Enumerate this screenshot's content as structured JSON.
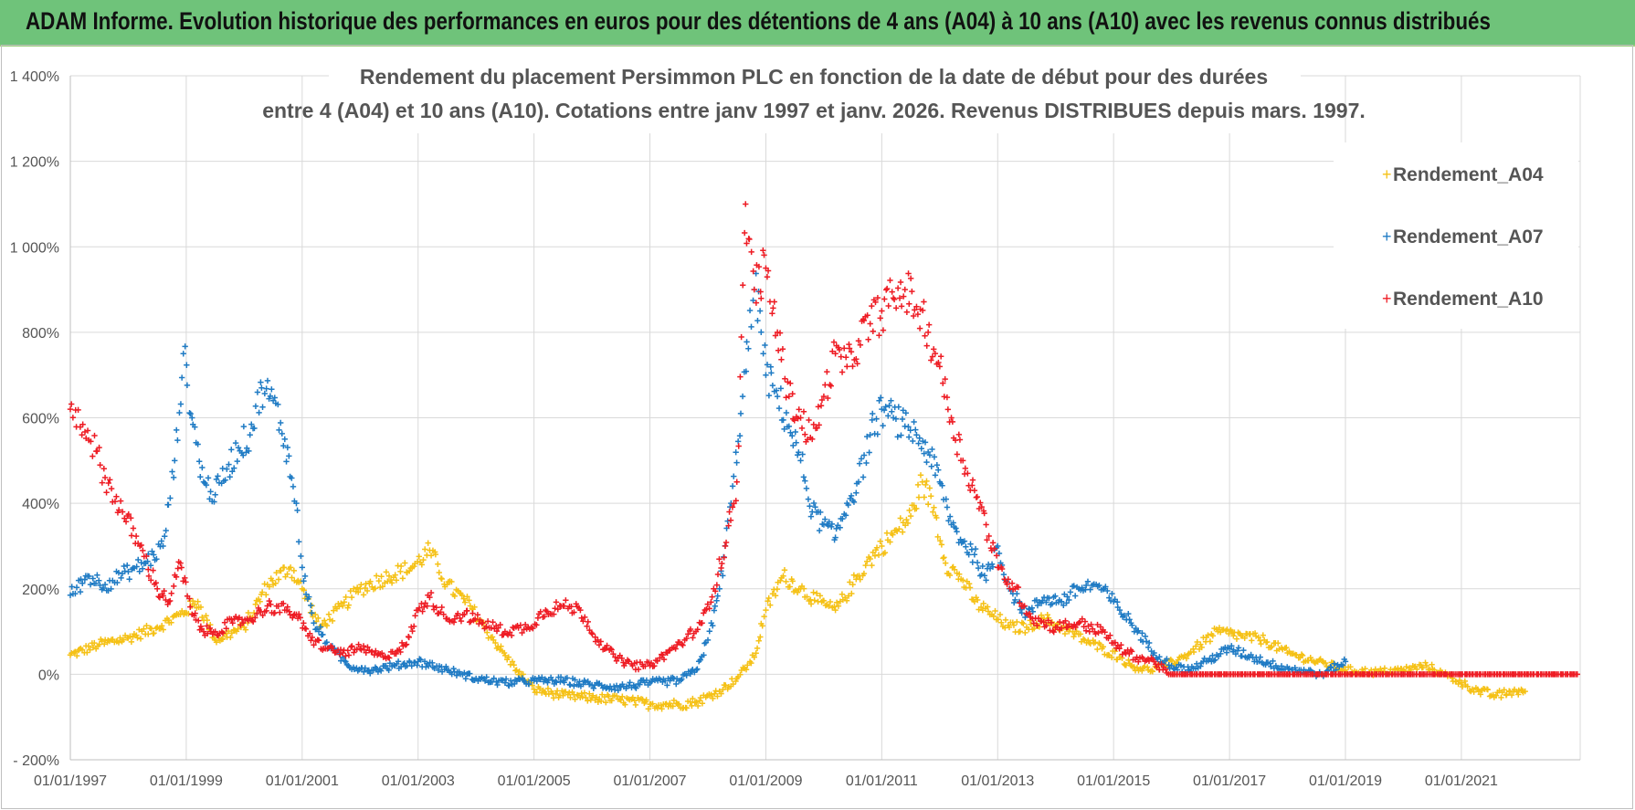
{
  "banner": {
    "title": "ADAM Informe. Evolution historique des performances en euros pour des détentions de 4 ans (A04) à 10 ans (A10) avec les revenus connus distribués"
  },
  "colors": {
    "banner_bg": "#6fc37a",
    "grid": "#d9d9d9",
    "A04": "#f5c116",
    "A07": "#1f7bc4",
    "A10": "#ee1c24"
  },
  "chart_data": {
    "type": "scatter",
    "title": [
      "Rendement du placement Persimmon PLC en fonction de la date de début pour des durées",
      "entre 4 (A04) et 10 ans (A10).  Cotations entre janv 1997 et janv. 2026. Revenus DISTRIBUES depuis mars. 1997."
    ],
    "marker": "+",
    "xlabel": "",
    "ylabel": "",
    "xlim": [
      1997.0,
      2023.05
    ],
    "ylim": [
      -200,
      1400
    ],
    "y_ticks": [
      -200,
      0,
      200,
      400,
      600,
      800,
      1000,
      1200,
      1400
    ],
    "y_tick_labels": [
      "- 200%",
      "0%",
      "200%",
      "400%",
      "600%",
      "800%",
      "1 000%",
      "1 200%",
      "1 400%"
    ],
    "x_ticks": [
      1997,
      1999,
      2001,
      2003,
      2005,
      2007,
      2009,
      2011,
      2013,
      2015,
      2017,
      2019,
      2021
    ],
    "x_tick_labels": [
      "01/01/1997",
      "01/01/1999",
      "01/01/2001",
      "01/01/2003",
      "01/01/2005",
      "01/01/2007",
      "01/01/2009",
      "01/01/2011",
      "01/01/2013",
      "01/01/2015",
      "01/01/2017",
      "01/01/2019",
      "01/01/2021"
    ],
    "legend_position": "top-right",
    "series": [
      {
        "name": "Rendement_A04",
        "color": "#f5c116",
        "x": [
          1997.0,
          1997.5,
          1998.0,
          1998.5,
          1998.9,
          1999.2,
          1999.5,
          2000.0,
          2000.4,
          2000.8,
          2001.0,
          2001.3,
          2001.7,
          2002.0,
          2002.5,
          2002.9,
          2003.2,
          2003.5,
          2003.9,
          2004.3,
          2004.7,
          2005.0,
          2005.5,
          2006.0,
          2006.5,
          2007.0,
          2007.5,
          2007.8,
          2008.2,
          2008.5,
          2008.8,
          2009.0,
          2009.3,
          2009.6,
          2009.9,
          2010.2,
          2010.5,
          2010.8,
          2011.0,
          2011.3,
          2011.5,
          2011.7,
          2011.9,
          2012.1,
          2012.4,
          2012.6,
          2012.9,
          2013.2,
          2013.5,
          2013.8,
          2014.1,
          2014.5,
          2014.8,
          2015.1,
          2015.3,
          2015.6,
          2015.9,
          2016.2,
          2016.5,
          2016.8,
          2017.2,
          2017.6,
          2018.0,
          2018.5,
          2019.0,
          2019.5,
          2020.0,
          2020.4,
          2020.7,
          2021.0,
          2021.3,
          2021.6,
          2021.9,
          2022.1
        ],
        "y": [
          45,
          70,
          85,
          110,
          140,
          170,
          80,
          110,
          210,
          250,
          200,
          110,
          160,
          200,
          230,
          250,
          290,
          210,
          160,
          80,
          10,
          -35,
          -50,
          -55,
          -60,
          -70,
          -70,
          -65,
          -40,
          -10,
          40,
          150,
          230,
          200,
          170,
          150,
          210,
          270,
          300,
          340,
          370,
          450,
          390,
          260,
          220,
          170,
          140,
          110,
          110,
          130,
          110,
          80,
          60,
          40,
          20,
          10,
          20,
          40,
          70,
          100,
          90,
          80,
          50,
          30,
          10,
          5,
          10,
          20,
          0,
          -20,
          -40,
          -50,
          -40,
          -40
        ]
      },
      {
        "name": "Rendement_A07",
        "color": "#1f7bc4",
        "x": [
          1997.0,
          1997.3,
          1997.6,
          1998.0,
          1998.3,
          1998.6,
          1998.8,
          1998.95,
          1999.1,
          1999.3,
          1999.5,
          1999.7,
          1999.9,
          2000.1,
          2000.3,
          2000.5,
          2000.7,
          2000.9,
          2001.0,
          2001.2,
          2001.5,
          2001.8,
          2002.2,
          2002.6,
          2003.0,
          2003.5,
          2004.0,
          2004.5,
          2005.0,
          2005.5,
          2006.0,
          2006.5,
          2007.0,
          2007.5,
          2007.8,
          2008.0,
          2008.2,
          2008.4,
          2008.6,
          2008.8,
          2008.9,
          2009.0,
          2009.2,
          2009.4,
          2009.6,
          2009.8,
          2010.0,
          2010.2,
          2010.4,
          2010.6,
          2010.8,
          2011.0,
          2011.2,
          2011.4,
          2011.6,
          2011.8,
          2012.0,
          2012.2,
          2012.4,
          2012.6,
          2012.8,
          2013.0,
          2013.2,
          2013.5,
          2013.8,
          2014.1,
          2014.4,
          2014.7,
          2015.0,
          2015.3,
          2015.7,
          2016.0,
          2016.3,
          2016.6,
          2017.0,
          2017.4,
          2017.8,
          2018.2,
          2018.6,
          2019.0
        ],
        "y": [
          185,
          230,
          210,
          240,
          260,
          300,
          500,
          750,
          600,
          450,
          420,
          480,
          530,
          560,
          670,
          640,
          550,
          400,
          250,
          120,
          60,
          20,
          10,
          20,
          30,
          10,
          -10,
          -20,
          -15,
          -15,
          -25,
          -30,
          -20,
          -15,
          10,
          80,
          200,
          400,
          650,
          900,
          850,
          700,
          650,
          580,
          500,
          380,
          350,
          320,
          400,
          450,
          560,
          620,
          600,
          580,
          560,
          520,
          450,
          350,
          310,
          280,
          220,
          300,
          200,
          140,
          180,
          170,
          200,
          210,
          170,
          120,
          50,
          20,
          10,
          30,
          60,
          40,
          20,
          10,
          0,
          30
        ]
      },
      {
        "name": "Rendement_A10",
        "color": "#ee1c24",
        "x": [
          1997.0,
          1997.3,
          1997.6,
          1997.9,
          1998.2,
          1998.5,
          1998.7,
          1998.9,
          1999.1,
          1999.3,
          1999.5,
          1999.8,
          2000.1,
          2000.4,
          2000.7,
          2000.9,
          2001.1,
          2001.4,
          2001.7,
          2002.0,
          2002.4,
          2002.8,
          2003.0,
          2003.2,
          2003.5,
          2003.8,
          2004.1,
          2004.5,
          2004.9,
          2005.2,
          2005.5,
          2005.8,
          2006.1,
          2006.4,
          2006.7,
          2007.0,
          2007.3,
          2007.6,
          2007.9,
          2008.1,
          2008.3,
          2008.5,
          2008.65,
          2008.8,
          2009.0,
          2009.2,
          2009.4,
          2009.6,
          2009.8,
          2010.0,
          2010.2,
          2010.4,
          2010.6,
          2010.8,
          2011.0,
          2011.2,
          2011.4,
          2011.6,
          2011.8,
          2012.0,
          2012.2,
          2012.4,
          2012.6,
          2012.8,
          2013.0,
          2013.3,
          2013.6,
          2014.0,
          2014.4,
          2014.8,
          2015.1,
          2015.4,
          2015.7,
          2015.95,
          2016.5,
          2017.0,
          2018.0,
          2019.0,
          2020.0,
          2021.0,
          2022.0,
          2022.6,
          2023.0
        ],
        "y": [
          620,
          570,
          460,
          380,
          300,
          200,
          170,
          260,
          140,
          100,
          100,
          120,
          130,
          160,
          150,
          140,
          90,
          60,
          50,
          60,
          40,
          70,
          150,
          180,
          130,
          140,
          120,
          100,
          110,
          150,
          160,
          150,
          80,
          40,
          20,
          20,
          50,
          80,
          120,
          200,
          300,
          450,
          1100,
          900,
          950,
          800,
          650,
          600,
          550,
          650,
          750,
          720,
          780,
          820,
          850,
          880,
          900,
          860,
          800,
          720,
          600,
          500,
          430,
          350,
          250,
          200,
          130,
          110,
          120,
          100,
          60,
          40,
          30,
          0,
          0,
          0,
          0,
          0,
          0,
          0,
          0,
          0,
          0
        ]
      }
    ]
  }
}
